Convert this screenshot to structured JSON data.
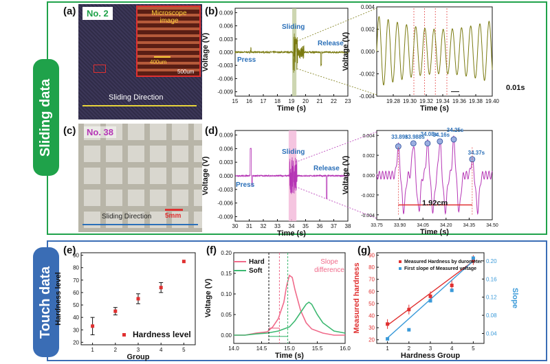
{
  "sections": {
    "sliding_label": "Sliding data",
    "touch_label": "Touch data"
  },
  "colors": {
    "sliding": "#1fa24a",
    "touch": "#3a6db5",
    "olive": "#7a7a10",
    "magenta": "#b535b5",
    "blue_text": "#2a6fb8",
    "red": "#e03030"
  },
  "panels": {
    "a": {
      "label": "(a)",
      "badge": "No. 2",
      "inset_title": "Microscope image",
      "inset_scale": "400um",
      "scale": "500um",
      "direction": "Sliding Direction"
    },
    "c": {
      "label": "(c)",
      "badge": "No. 38",
      "scale": "5mm",
      "direction": "Sliding Direction"
    },
    "b": {
      "label": "(b)",
      "annotations": {
        "press": "Press",
        "sliding": "Sliding",
        "release": "Release"
      },
      "zoom_note": "0.01s"
    },
    "d": {
      "label": "(d)",
      "annotations": {
        "press": "Press",
        "sliding": "Sliding",
        "release": "Release"
      },
      "peaks": [
        "33.89s",
        "33.988s",
        "34.08s",
        "34.16s",
        "34.25s",
        "34.37s"
      ],
      "distance": "1.92cm"
    },
    "e": {
      "label": "(e)",
      "legend": "Hardness level"
    },
    "f": {
      "label": "(f)",
      "legend": [
        "Hard",
        "Soft"
      ],
      "note": "Slope difference"
    },
    "g": {
      "label": "(g)",
      "legend": [
        "Measured Hardness by durometer",
        "First slope of Measured voltage"
      ]
    }
  },
  "chart_data": [
    {
      "id": "b-main",
      "type": "line",
      "xlabel": "Time (s)",
      "ylabel": "Voltage (V)",
      "xlim": [
        15,
        23
      ],
      "ylim": [
        -0.01,
        0.01
      ],
      "x_ticks": [
        "15",
        "16",
        "17",
        "18",
        "19",
        "20",
        "21",
        "22",
        "23"
      ],
      "y_ticks": [
        "0.009",
        "0.006",
        "0.003",
        "0.000",
        "-0.003",
        "-0.006",
        "-0.009"
      ]
    },
    {
      "id": "b-zoom",
      "type": "line",
      "xlabel": "Time (s)",
      "ylabel": "Voltage (V)",
      "xlim": [
        19.26,
        19.4
      ],
      "ylim": [
        -0.004,
        0.004
      ],
      "x_ticks": [
        "19.28",
        "19.30",
        "19.32",
        "19.34",
        "19.36",
        "19.38",
        "19.40"
      ],
      "y_ticks": [
        "0.004",
        "0.002",
        "0.000",
        "-0.002",
        "-0.004"
      ]
    },
    {
      "id": "d-main",
      "type": "line",
      "xlabel": "Time (s)",
      "ylabel": "Voltage (V)",
      "xlim": [
        30,
        38
      ],
      "ylim": [
        -0.01,
        0.01
      ],
      "x_ticks": [
        "30",
        "31",
        "32",
        "33",
        "34",
        "35",
        "36",
        "37",
        "38"
      ],
      "y_ticks": [
        "0.009",
        "0.006",
        "0.003",
        "0.000",
        "-0.003",
        "-0.006",
        "-0.009"
      ]
    },
    {
      "id": "d-zoom",
      "type": "line",
      "xlabel": "Time (s)",
      "ylabel": "Voltage (V)",
      "xlim": [
        33.75,
        34.5
      ],
      "ylim": [
        -0.0045,
        0.0045
      ],
      "x_ticks": [
        "33.75",
        "33.90",
        "34.05",
        "34.20",
        "34.35",
        "34.50"
      ],
      "y_ticks": [
        "0.004",
        "0.002",
        "0.000",
        "-0.002",
        "-0.004"
      ]
    },
    {
      "id": "e",
      "type": "scatter",
      "xlabel": "Group",
      "ylabel": "Hardness level",
      "xlim": [
        0.5,
        5.5
      ],
      "ylim": [
        18,
        92
      ],
      "x_ticks": [
        "1",
        "2",
        "3",
        "4",
        "5"
      ],
      "y_ticks": [
        "20",
        "30",
        "40",
        "50",
        "60",
        "70",
        "80",
        "90"
      ],
      "x": [
        1,
        2,
        3,
        4,
        5
      ],
      "y": [
        33,
        45,
        55,
        64,
        85
      ],
      "err": [
        7,
        3,
        4,
        4,
        0
      ]
    },
    {
      "id": "f",
      "type": "line",
      "xlabel": "Time (s)",
      "ylabel": "Voltage (V)",
      "xlim": [
        14.0,
        16.0
      ],
      "ylim": [
        -0.02,
        0.2
      ],
      "x_ticks": [
        "14.0",
        "14.5",
        "15.0",
        "15.5",
        "16.0"
      ],
      "y_ticks": [
        "0.20",
        "0.15",
        "0.10",
        "0.05",
        "0.00"
      ],
      "series": [
        {
          "name": "Hard",
          "x": [
            14.0,
            14.2,
            14.4,
            14.6,
            14.7,
            14.8,
            14.9,
            14.95,
            15.0,
            15.05,
            15.1,
            15.2,
            15.3,
            15.4,
            15.6,
            15.8,
            16.0
          ],
          "y": [
            0.0,
            0.0,
            0.005,
            0.008,
            0.02,
            0.04,
            0.08,
            0.12,
            0.145,
            0.14,
            0.11,
            0.06,
            0.03,
            0.015,
            0.005,
            0.0,
            0.0
          ]
        },
        {
          "name": "Soft",
          "x": [
            14.0,
            14.2,
            14.4,
            14.6,
            14.8,
            14.9,
            15.0,
            15.1,
            15.2,
            15.3,
            15.35,
            15.4,
            15.5,
            15.6,
            15.8,
            16.0
          ],
          "y": [
            0.0,
            0.0,
            0.003,
            0.005,
            0.01,
            0.015,
            0.02,
            0.035,
            0.055,
            0.075,
            0.08,
            0.075,
            0.05,
            0.03,
            0.01,
            0.005
          ]
        }
      ]
    },
    {
      "id": "g",
      "type": "scatter",
      "xlabel": "Hardness Group",
      "ylabel": "Measured hardness",
      "y2label": "Slope",
      "xlim": [
        0.5,
        5.5
      ],
      "ylim": [
        17,
        92
      ],
      "y2lim": [
        0.018,
        0.218
      ],
      "x_ticks": [
        "1",
        "2",
        "3",
        "4",
        "5"
      ],
      "y_ticks": [
        "20",
        "30",
        "40",
        "50",
        "60",
        "70",
        "80",
        "90"
      ],
      "y2_ticks": [
        "0.04",
        "0.08",
        "0.12",
        "0.16",
        "0.20"
      ],
      "series": [
        {
          "name": "Measured Hardness by durometer",
          "x": [
            1,
            2,
            3,
            4,
            5
          ],
          "y": [
            33,
            45,
            56,
            65,
            86
          ]
        },
        {
          "name": "First slope of Measured voltage",
          "x": [
            1,
            2,
            3,
            4,
            5
          ],
          "y": [
            0.028,
            0.048,
            0.112,
            0.135,
            0.206
          ]
        }
      ]
    }
  ]
}
